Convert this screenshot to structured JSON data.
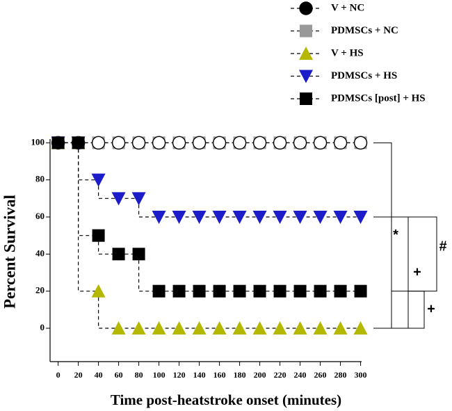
{
  "chart_data": {
    "type": "step",
    "x_label": "Time post-heatstroke onset (minutes)",
    "y_label": "Percent Survival",
    "x": [
      0,
      20,
      40,
      60,
      80,
      100,
      120,
      140,
      160,
      180,
      200,
      220,
      240,
      260,
      280,
      300
    ],
    "series": [
      {
        "name": "V + NC",
        "color": "#000000",
        "marker": "circle",
        "values": [
          100,
          100,
          100,
          100,
          100,
          100,
          100,
          100,
          100,
          100,
          100,
          100,
          100,
          100,
          100,
          100
        ]
      },
      {
        "name": "PDMSCs + NC",
        "color": "#999999",
        "marker": "square",
        "values": [
          100,
          100,
          100,
          100,
          100,
          100,
          100,
          100,
          100,
          100,
          100,
          100,
          100,
          100,
          100,
          100
        ]
      },
      {
        "name": "V + HS",
        "color": "#b5b800",
        "marker": "triangle-up",
        "values": [
          100,
          100,
          20,
          0,
          0,
          0,
          0,
          0,
          0,
          0,
          0,
          0,
          0,
          0,
          0,
          0
        ]
      },
      {
        "name": "PDMSCs + HS",
        "color": "#1c1cc8",
        "marker": "triangle-down",
        "values": [
          100,
          100,
          80,
          70,
          70,
          60,
          60,
          60,
          60,
          60,
          60,
          60,
          60,
          60,
          60,
          60
        ]
      },
      {
        "name": "PDMSCs [post] + HS",
        "color": "#000000",
        "marker": "square",
        "values": [
          100,
          100,
          50,
          40,
          40,
          20,
          20,
          20,
          20,
          20,
          20,
          20,
          20,
          20,
          20,
          20
        ]
      }
    ],
    "xlim": [
      -8,
      301
    ],
    "xticks": [
      0,
      20,
      40,
      60,
      80,
      100,
      120,
      140,
      160,
      180,
      200,
      220,
      240,
      260,
      280,
      300
    ],
    "ylim": [
      -18,
      102
    ],
    "yticks": [
      0,
      20,
      40,
      60,
      80,
      100
    ],
    "legend": "upper right",
    "annotations": [
      {
        "text": "*",
        "y1": 100,
        "y2": 0
      },
      {
        "text": "+",
        "y1": 60,
        "y2": 0
      },
      {
        "text": "#",
        "y1": 60,
        "y2": 20
      },
      {
        "text": "+",
        "y1": 20,
        "y2": 0
      }
    ]
  }
}
